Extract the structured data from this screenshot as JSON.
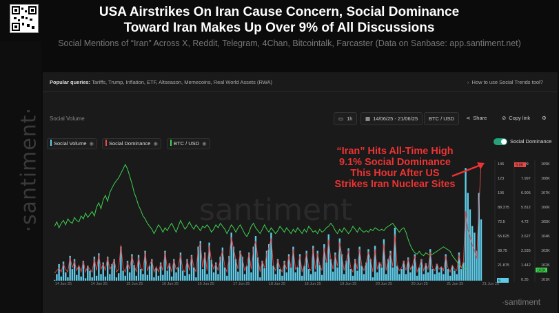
{
  "headline": {
    "line1": "USA Airstrikes On Iran Cause Concern, Social Dominance",
    "line2": "Toward Iran Makes Up Over 9% of All Discussions"
  },
  "subheadline": "Social Mentions of “Iran” Across X, Reddit, Telegram, 4Chan, Bitcointalk, Farcaster (Data on Sanbase: app.santiment.net)",
  "popular_queries": {
    "label": "Popular queries:",
    "items": "Tariffs, Trump, Inflation, ETF, Altseason, Memecoins, Real World Assets (RWA)",
    "help_link": "How to use Social Trends tool?"
  },
  "panel": {
    "title": "Social Volume",
    "interval": "1h",
    "date_range": "14/06/25 - 21/06/25",
    "pair": "BTC / USD",
    "share": "Share",
    "copy_link": "Copy link"
  },
  "legend": {
    "social_volume": "Social Volume",
    "social_dominance": "Social Dominance",
    "btc_usd": "BTC / USD",
    "toggle_label": "Social Dominance"
  },
  "annotation": {
    "lines": [
      "“Iran” Hits All-Time High",
      "9.1% Social Dominance",
      "This Hour  After US",
      "Strikes Iran Nuclear Sites"
    ]
  },
  "watermark": "santiment",
  "side_brand": "·santiment·",
  "colors": {
    "social_volume": "#5ecbe8",
    "social_dominance": "#e84a4a",
    "btc_usd": "#3fd14f",
    "annotation": "#e33333"
  },
  "chart_data": {
    "type": "bar",
    "title": "",
    "x_ticks": [
      "14 Jun 25",
      "14 Jun 25",
      "15 Jun 25",
      "16 Jun 25",
      "16 Jun 25",
      "17 Jun 25",
      "18 Jun 25",
      "18 Jun 25",
      "19 Jun 25",
      "20 Jun 25",
      "20 Jun 25",
      "21 Jun 25",
      "21 Jun 25"
    ],
    "axis_social_volume": [
      "146",
      "123",
      "106",
      "88.375",
      "72.5",
      "55.625",
      "38.75",
      "21.875",
      "4"
    ],
    "axis_social_dominance": [
      "9.09",
      "7.997",
      "6.905",
      "5.812",
      "4.72",
      "3.627",
      "2.535",
      "1.442",
      "0.35"
    ],
    "axis_btc_usd": [
      "109K",
      "108K",
      "107K",
      "106K",
      "105K",
      "104K",
      "103K",
      "102K",
      "101K"
    ],
    "current_badges": {
      "social_volume": "6",
      "social_dominance": "9.09",
      "btc_usd": "102K"
    },
    "ylim_social_volume": [
      4,
      146
    ],
    "ylim_social_dominance": [
      0.35,
      9.09
    ],
    "ylim_btc_usd": [
      101000,
      109000
    ],
    "series": [
      {
        "name": "Social Volume",
        "type": "bar",
        "values": [
          5,
          12,
          24,
          9,
          27,
          14,
          8,
          34,
          18,
          30,
          11,
          21,
          9,
          28,
          7,
          22,
          16,
          8,
          33,
          10,
          37,
          12,
          26,
          9,
          33,
          12,
          24,
          30,
          8,
          13,
          45,
          16,
          10,
          28,
          14,
          36,
          23,
          10,
          35,
          18,
          12,
          40,
          11,
          22,
          30,
          8,
          19,
          10,
          26,
          11,
          40,
          16,
          25,
          9,
          30,
          14,
          20,
          38,
          16,
          10,
          30,
          12,
          35,
          20,
          8,
          45,
          52,
          18,
          38,
          12,
          50,
          29,
          14,
          26,
          12,
          33,
          44,
          20,
          10,
          34,
          62,
          45,
          30,
          15,
          40,
          33,
          12,
          22,
          38,
          14,
          45,
          58,
          32,
          8,
          28,
          19,
          40,
          48,
          62,
          22,
          12,
          30,
          18,
          10,
          28,
          14,
          36,
          20,
          45,
          14,
          20,
          36,
          10,
          22,
          40,
          18,
          12,
          46,
          15,
          40,
          23,
          11,
          48,
          26,
          60,
          30,
          15,
          38,
          20,
          55,
          36,
          12,
          28,
          43,
          18,
          10,
          30,
          16,
          45,
          22,
          12,
          26,
          42,
          30,
          8,
          46,
          14,
          26,
          20,
          54,
          12,
          30,
          40,
          20,
          68,
          22,
          12,
          18,
          28,
          12,
          32,
          14,
          22,
          36,
          10,
          20,
          30,
          12,
          25,
          14,
          42,
          18,
          12,
          24,
          14,
          20,
          12,
          36,
          18,
          10,
          22,
          16,
          12,
          38,
          18,
          26,
          140,
          110,
          90,
          70,
          62,
          40,
          110,
          78
        ]
      },
      {
        "name": "Social Dominance",
        "type": "line",
        "values": [
          0.9,
          1.1,
          1.3,
          1.0,
          1.6,
          1.2,
          1.0,
          2.1,
          1.3,
          1.8,
          1.1,
          1.5,
          1.0,
          1.8,
          1.0,
          1.4,
          1.2,
          1.0,
          2.0,
          1.1,
          2.3,
          1.2,
          1.6,
          1.1,
          2.1,
          1.2,
          1.5,
          1.9,
          1.0,
          1.2,
          3.0,
          1.3,
          1.0,
          1.7,
          1.2,
          2.2,
          1.5,
          1.0,
          2.1,
          1.3,
          1.1,
          2.5,
          1.1,
          1.5,
          1.9,
          1.0,
          1.4,
          1.0,
          1.6,
          1.1,
          2.5,
          1.2,
          1.6,
          1.0,
          1.9,
          1.2,
          1.4,
          2.3,
          1.2,
          1.0,
          1.9,
          1.1,
          2.2,
          1.4,
          1.0,
          2.8,
          3.1,
          1.3,
          2.4,
          1.1,
          3.0,
          1.8,
          1.2,
          1.6,
          1.1,
          2.0,
          2.6,
          1.4,
          1.0,
          2.1,
          3.6,
          2.7,
          1.9,
          1.2,
          2.5,
          2.0,
          1.1,
          1.5,
          2.4,
          1.2,
          2.7,
          3.3,
          2.0,
          1.0,
          1.8,
          1.3,
          2.4,
          2.8,
          3.5,
          1.5,
          1.1,
          1.9,
          1.3,
          1.0,
          1.7,
          1.2,
          2.2,
          1.3,
          2.7,
          1.2,
          1.4,
          2.2,
          1.0,
          1.5,
          2.4,
          1.3,
          1.1,
          2.8,
          1.2,
          2.4,
          1.5,
          1.1,
          2.8,
          1.7,
          3.4,
          1.9,
          1.2,
          2.3,
          1.4,
          3.2,
          2.2,
          1.1,
          1.8,
          2.6,
          1.3,
          1.0,
          1.9,
          1.2,
          2.7,
          1.5,
          1.1,
          1.7,
          2.5,
          1.9,
          1.0,
          2.7,
          1.2,
          1.7,
          1.4,
          3.1,
          1.1,
          1.9,
          2.4,
          1.4,
          3.8,
          1.5,
          1.1,
          1.3,
          1.8,
          1.1,
          2.0,
          1.2,
          1.5,
          2.2,
          1.0,
          1.4,
          1.9,
          1.1,
          1.6,
          1.2,
          2.5,
          1.3,
          1.1,
          1.6,
          1.2,
          1.4,
          1.1,
          2.2,
          1.3,
          1.0,
          1.5,
          1.2,
          1.1,
          2.3,
          1.3,
          1.7,
          5.5,
          4.2,
          3.6,
          3.0,
          2.6,
          2.0,
          5.8,
          9.09
        ]
      },
      {
        "name": "BTC / USD",
        "type": "line",
        "values": [
          104700,
          105000,
          104600,
          104900,
          105100,
          104800,
          105200,
          105000,
          104900,
          105300,
          105100,
          105000,
          105400,
          105200,
          105600,
          105300,
          105500,
          105700,
          105400,
          106000,
          106300,
          105900,
          106500,
          106800,
          106400,
          107000,
          107300,
          107600,
          107800,
          108000,
          108300,
          108600,
          108900,
          108600,
          108100,
          107600,
          107000,
          106600,
          106100,
          105800,
          105400,
          105200,
          104900,
          104700,
          104500,
          104200,
          104500,
          104800,
          104600,
          104300,
          104600,
          104400,
          104700,
          104900,
          104600,
          104300,
          104700,
          105100,
          104800,
          104500,
          104700,
          105000,
          104700,
          104500,
          104800,
          104600,
          104400,
          104700,
          104600,
          104800,
          104600,
          104300,
          104500,
          104800,
          104600,
          104900,
          104700,
          104500,
          104200,
          104500,
          104800,
          104600,
          104300,
          104600,
          104800,
          104500,
          104200,
          104000,
          104300,
          104700,
          104900,
          104600,
          104400,
          104200,
          104500,
          104800,
          104500,
          104300,
          104600,
          104400,
          104200,
          104400,
          104700,
          104500,
          104300,
          104600,
          104400,
          104200,
          104500,
          104300,
          104600,
          104400,
          104200,
          104500,
          104300,
          104700,
          104500,
          104300,
          104400,
          104200,
          104500,
          104300,
          104400,
          104600,
          104700,
          104900,
          104700,
          104400,
          104200,
          104500,
          104300,
          104600,
          104400,
          104200,
          104400,
          104700,
          104500,
          104300,
          104600,
          104400,
          104300,
          104400,
          104300,
          104500,
          104400,
          104600,
          104500,
          104400,
          104500,
          104400,
          104600,
          104700,
          104800,
          104900,
          104700,
          104500,
          104300,
          104500,
          104600,
          104300,
          103800,
          103400,
          103100,
          102900,
          102800,
          103000,
          102800,
          102700,
          102900,
          102800,
          102700,
          102800,
          102900,
          103000,
          103100,
          103200,
          103300,
          103200,
          103100,
          103000,
          102700,
          102500,
          102300,
          102100,
          101900,
          101800,
          101900,
          101800
        ]
      }
    ]
  }
}
